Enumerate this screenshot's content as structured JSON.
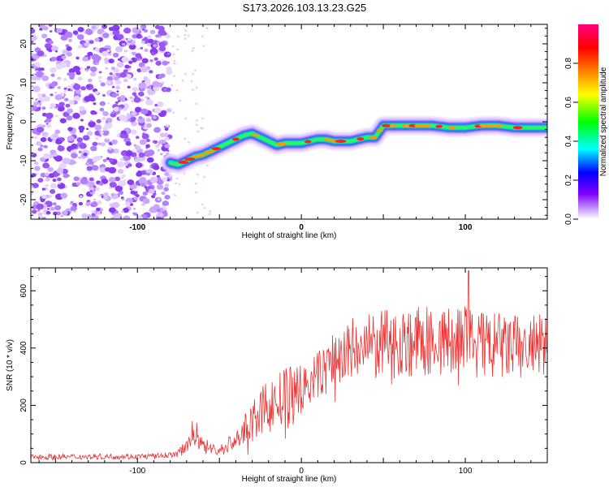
{
  "title": "S173.2026.103.13.23.G25",
  "chart_data": [
    {
      "type": "heatmap",
      "name": "spectrogram",
      "xlabel": "Height of straight line (km)",
      "ylabel": "Frequency (Hz)",
      "xlim": [
        -165,
        150
      ],
      "ylim": [
        -25,
        25
      ],
      "x_ticks": [
        -100,
        0,
        100
      ],
      "y_ticks": [
        20,
        10,
        0,
        -10,
        -20
      ],
      "colorbar": {
        "label": "Normalized spectral amplitude",
        "range": [
          0,
          1
        ],
        "ticks": [
          "0.0",
          "0.2",
          "0.4",
          "0.6",
          "0.8"
        ],
        "colors": [
          "#ffffff",
          "#c8a0ff",
          "#8000ff",
          "#0000ff",
          "#00ffff",
          "#00ff00",
          "#ffff00",
          "#ff8000",
          "#ff0000",
          "#ff0080"
        ]
      },
      "noise_region_x": [
        -165,
        -80
      ],
      "trace": {
        "x": [
          -80,
          -75,
          -70,
          -65,
          -60,
          -55,
          -50,
          -45,
          -40,
          -35,
          -30,
          -25,
          -20,
          -15,
          -10,
          -5,
          0,
          5,
          10,
          15,
          20,
          25,
          30,
          35,
          40,
          45,
          50,
          60,
          70,
          80,
          90,
          100,
          110,
          120,
          130,
          140,
          150
        ],
        "y": [
          -10.5,
          -11,
          -10,
          -9,
          -8.5,
          -7.5,
          -6.5,
          -5.5,
          -4.5,
          -3.5,
          -3,
          -4,
          -5,
          -6,
          -5.5,
          -5.5,
          -5.5,
          -5,
          -4.5,
          -4.5,
          -5,
          -5,
          -5,
          -4.5,
          -4,
          -4,
          -1,
          -1,
          -1,
          -1,
          -1.5,
          -1.5,
          -1,
          -1,
          -1.5,
          -1.5,
          -1.5
        ]
      }
    },
    {
      "type": "line",
      "name": "snr",
      "xlabel": "Height of straight line (km)",
      "ylabel": "SNR (10 * v/v)",
      "xlim": [
        -165,
        150
      ],
      "ylim": [
        0,
        680
      ],
      "x_ticks": [
        -100,
        0,
        100
      ],
      "y_ticks": [
        0,
        200,
        400,
        600
      ],
      "color": "#ee3333",
      "envelope": {
        "x": [
          -165,
          -90,
          -75,
          -70,
          -65,
          -60,
          -55,
          -50,
          -40,
          -30,
          -20,
          -10,
          0,
          10,
          20,
          30,
          40,
          50,
          60,
          70,
          80,
          90,
          100,
          110,
          120,
          130,
          140,
          150
        ],
        "y": [
          20,
          22,
          30,
          70,
          110,
          60,
          50,
          40,
          80,
          140,
          200,
          220,
          250,
          300,
          360,
          390,
          400,
          410,
          420,
          420,
          425,
          420,
          430,
          410,
          405,
          400,
          400,
          400
        ]
      },
      "peak": {
        "x": 102,
        "y": 670
      }
    }
  ]
}
